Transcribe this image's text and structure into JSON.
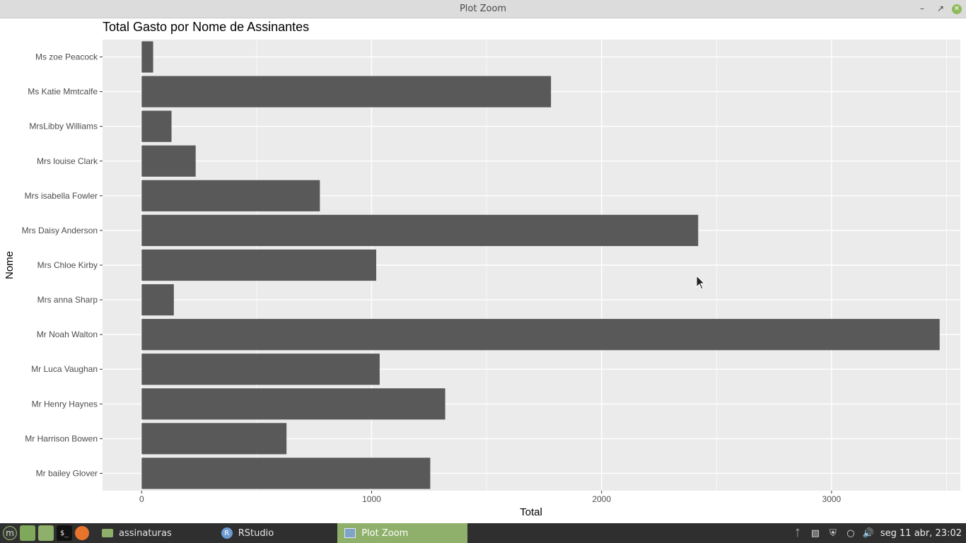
{
  "window": {
    "title": "Plot Zoom"
  },
  "colors": {
    "panel_bg": "#ebebeb",
    "bar": "#595959",
    "grid_major": "#ffffff",
    "accent": "#8fb06a"
  },
  "chart_data": {
    "type": "bar",
    "orientation": "horizontal",
    "title": "Total Gasto por Nome de Assinantes",
    "xlabel": "Total",
    "ylabel": "Nome",
    "xlim": [
      -170,
      3560
    ],
    "xticks": [
      0,
      1000,
      2000,
      3000
    ],
    "xtick_labels": [
      "0",
      "1000",
      "2000",
      "3000"
    ],
    "grid": true,
    "categories": [
      "Ms zoe Peacock",
      "Ms Katie Mmtcalfe",
      "MrsLibby Williams",
      "Mrs louise Clark",
      "Mrs isabella Fowler",
      "Mrs Daisy Anderson ",
      "Mrs Chloe Kirby",
      "Mrs anna Sharp",
      "Mr Noah Walton",
      "Mr Luca Vaughan",
      "Mr Henry Haynes",
      "Mr Harrison Bowen",
      "Mr bailey Glover"
    ],
    "values": [
      50,
      1780,
      130,
      235,
      775,
      2420,
      1020,
      140,
      3470,
      1035,
      1320,
      630,
      1255
    ]
  },
  "taskbar": {
    "launchers": [
      "menu-icon",
      "show-desktop-icon",
      "files-icon",
      "terminal-icon",
      "firefox-icon"
    ],
    "tasks": [
      {
        "label": "assinaturas",
        "icon": "folder-icon",
        "active": false
      },
      {
        "label": "RStudio",
        "icon": "rstudio-icon",
        "active": false
      },
      {
        "label": "Plot Zoom",
        "icon": "window-icon",
        "active": true
      }
    ],
    "clock": "seg 11 abr, 23:02"
  }
}
